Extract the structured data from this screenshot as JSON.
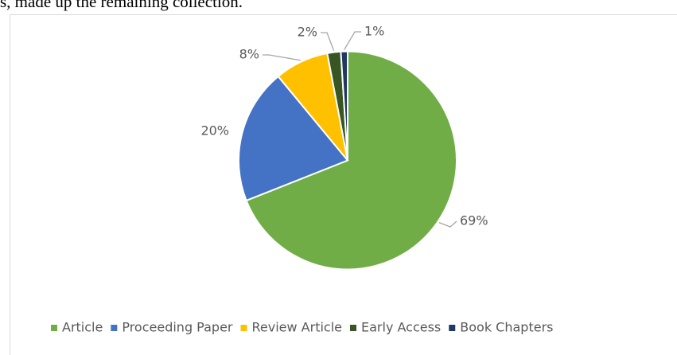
{
  "text": "s, made up the remaining collection.",
  "chart_data": {
    "type": "pie",
    "categories": [
      "Article",
      "Proceeding Paper",
      "Review Article",
      "Early Access",
      "Book Chapters"
    ],
    "values": [
      69,
      20,
      8,
      2,
      1
    ],
    "value_labels": [
      "69%",
      "20%",
      "8%",
      "2%",
      "1%"
    ],
    "colors": [
      "#70ad47",
      "#4472c4",
      "#ffc000",
      "#375623",
      "#203864"
    ],
    "legend": "bottom"
  }
}
